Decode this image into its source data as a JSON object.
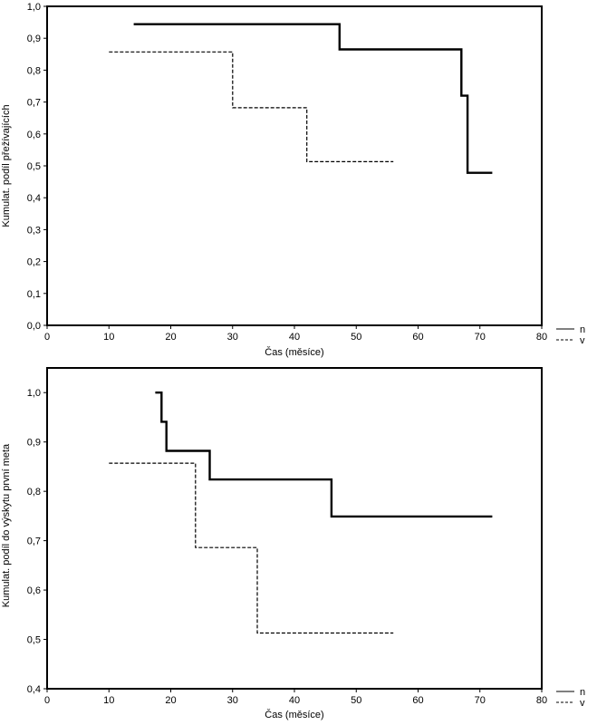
{
  "chart_data": [
    {
      "type": "line",
      "step": true,
      "xlabel": "Čas (měsíce)",
      "ylabel": "Kumulat. podíl přežívajících",
      "xlim": [
        0,
        80
      ],
      "ylim": [
        0,
        1
      ],
      "xticks": [
        0,
        10,
        20,
        30,
        40,
        50,
        60,
        70,
        80
      ],
      "xtick_labels": [
        "0",
        "10",
        "20",
        "30",
        "40",
        "50",
        "60",
        "70",
        "80"
      ],
      "yticks": [
        0,
        0.1,
        0.2,
        0.3,
        0.4,
        0.5,
        0.6,
        0.7,
        0.8,
        0.9,
        1.0
      ],
      "ytick_labels": [
        "0,0",
        "0,1",
        "0,2",
        "0,3",
        "0,4",
        "0,5",
        "0,6",
        "0,7",
        "0,8",
        "0,9",
        "1,0"
      ],
      "grid": false,
      "legend_position": "bottom-right, outside",
      "series": [
        {
          "name": "n",
          "color": "#000000",
          "style": "solid",
          "points": [
            [
              14,
              0.944
            ],
            [
              47.3,
              0.944
            ],
            [
              47.3,
              0.865
            ],
            [
              67,
              0.865
            ],
            [
              67,
              0.72
            ],
            [
              68,
              0.72
            ],
            [
              68,
              0.478
            ],
            [
              72,
              0.478
            ]
          ]
        },
        {
          "name": "v",
          "color": "#000000",
          "style": "dashed",
          "points": [
            [
              10,
              0.857
            ],
            [
              30,
              0.857
            ],
            [
              30,
              0.682
            ],
            [
              42,
              0.682
            ],
            [
              42,
              0.513
            ],
            [
              56,
              0.513
            ]
          ]
        }
      ]
    },
    {
      "type": "line",
      "step": true,
      "xlabel": "Čas (měsíce)",
      "ylabel": "Kumulat. podíl do výskytu první meta",
      "xlim": [
        0,
        80
      ],
      "ylim": [
        0.4,
        1.05
      ],
      "xticks": [
        0,
        10,
        20,
        30,
        40,
        50,
        60,
        70,
        80
      ],
      "xtick_labels": [
        "0",
        "10",
        "20",
        "30",
        "40",
        "50",
        "60",
        "70",
        "80"
      ],
      "yticks": [
        0.4,
        0.5,
        0.6,
        0.7,
        0.8,
        0.9,
        1.0
      ],
      "ytick_labels": [
        "0,4",
        "0,5",
        "0,6",
        "0,7",
        "0,8",
        "0,9",
        "1,0"
      ],
      "grid": false,
      "legend_position": "bottom-right, outside",
      "series": [
        {
          "name": "n",
          "color": "#000000",
          "style": "solid",
          "points": [
            [
              17.5,
              1.0
            ],
            [
              18.5,
              1.0
            ],
            [
              18.5,
              0.941
            ],
            [
              19.3,
              0.941
            ],
            [
              19.3,
              0.882
            ],
            [
              26.3,
              0.882
            ],
            [
              26.3,
              0.824
            ],
            [
              46,
              0.824
            ],
            [
              46,
              0.749
            ],
            [
              72,
              0.749
            ]
          ]
        },
        {
          "name": "v",
          "color": "#000000",
          "style": "dashed",
          "points": [
            [
              10,
              0.857
            ],
            [
              24,
              0.857
            ],
            [
              24,
              0.686
            ],
            [
              34,
              0.686
            ],
            [
              34,
              0.513
            ],
            [
              56,
              0.513
            ]
          ]
        }
      ]
    }
  ]
}
